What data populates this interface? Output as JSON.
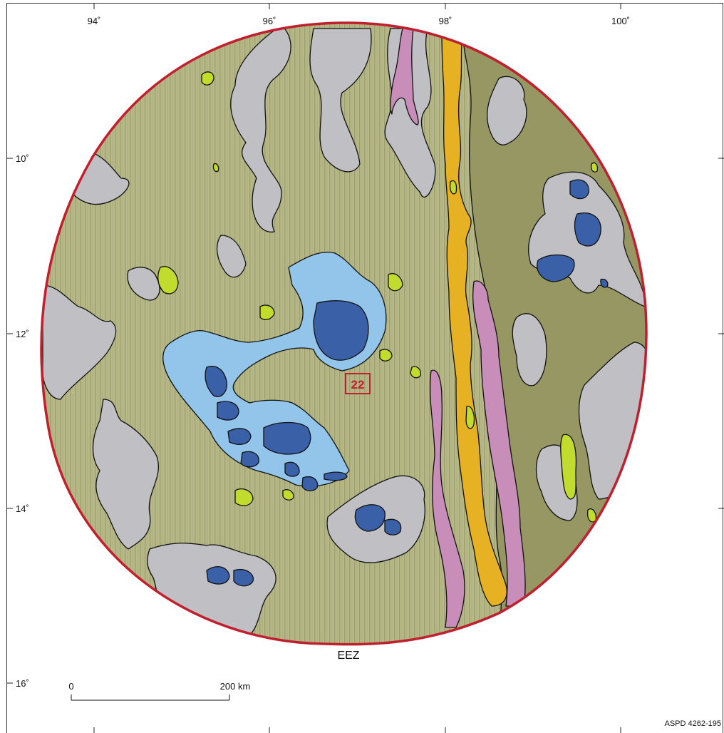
{
  "map": {
    "longitude_ticks": [
      "94˚",
      "96˚",
      "98˚",
      "100˚"
    ],
    "latitude_ticks": [
      "10˚",
      "12˚",
      "14˚",
      "16˚"
    ],
    "boundary_label": "EEZ",
    "area_number": "22",
    "scale_bar": {
      "start": "0",
      "end": "200 km"
    },
    "credit": "ASPD 4262-195",
    "colors": {
      "boundary": "#c0202e",
      "sediment_plain": "#b7b98a",
      "dark_plain": "#979764",
      "grey_unit": "#c0bfc4",
      "light_blue_unit": "#93c4ea",
      "dark_blue_unit": "#3a60a8",
      "lime_unit": "#c2dc2e",
      "orange_unit": "#e6b223",
      "pink_unit": "#c88db9",
      "label_box": "#c0202e"
    }
  }
}
